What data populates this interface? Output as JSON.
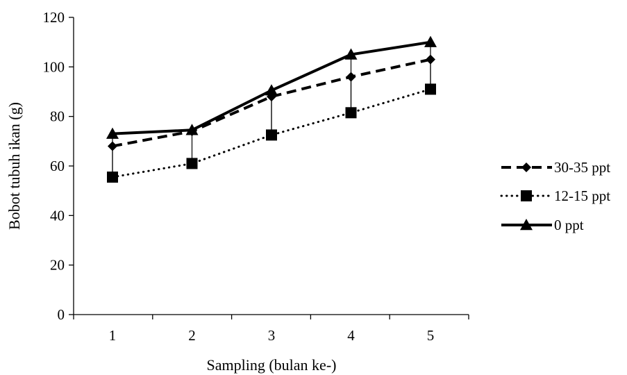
{
  "chart_data": {
    "type": "line",
    "title": "",
    "xlabel": "Sampling (bulan ke-)",
    "ylabel": "Bobot tubuh ikan (g)",
    "categories": [
      "1",
      "2",
      "3",
      "4",
      "5"
    ],
    "ylim": [
      0,
      120
    ],
    "yticks": [
      "0",
      "20",
      "40",
      "60",
      "80",
      "100",
      "120"
    ],
    "grid": false,
    "legend_position": "right",
    "series": [
      {
        "name": "30-35 ppt",
        "values": [
          68,
          74,
          88,
          96,
          103
        ],
        "error_minus": [
          12,
          0,
          16,
          15,
          12
        ],
        "line_style": "dashed",
        "marker": "diamond",
        "color": "#000000"
      },
      {
        "name": "12-15 ppt",
        "values": [
          55.5,
          61,
          72.5,
          81.5,
          91
        ],
        "error_minus": [
          0,
          0,
          0,
          0,
          0
        ],
        "line_style": "dotted",
        "marker": "square",
        "color": "#000000"
      },
      {
        "name": "0 ppt",
        "values": [
          73,
          74.5,
          90.5,
          105,
          110
        ],
        "error_minus": [
          18,
          14,
          18,
          24,
          19
        ],
        "line_style": "solid",
        "marker": "triangle",
        "color": "#000000"
      }
    ]
  }
}
